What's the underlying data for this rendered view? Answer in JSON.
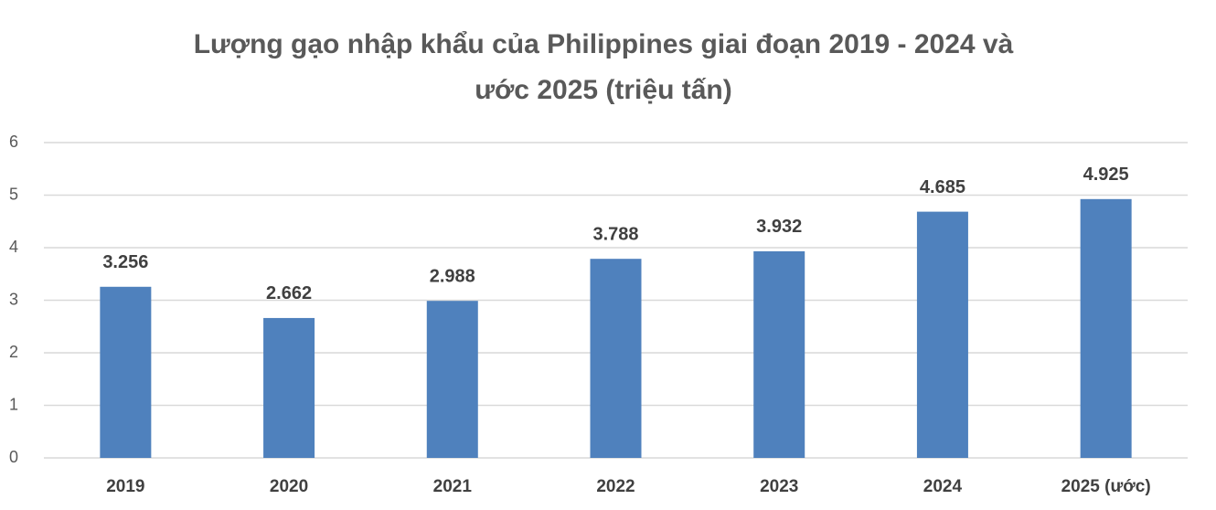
{
  "chart_data": {
    "type": "bar",
    "title": [
      "Lượng gạo nhập khẩu của Philippines giai đoạn 2019 - 2024 và",
      "ước 2025 (triệu tấn)"
    ],
    "categories": [
      "2019",
      "2020",
      "2021",
      "2022",
      "2023",
      "2024",
      "2025 (ước)"
    ],
    "values": [
      3.256,
      2.662,
      2.988,
      3.788,
      3.932,
      4.685,
      4.925
    ],
    "color": "#4f81bd",
    "ylim": [
      0,
      6
    ],
    "yticks": [
      0,
      1,
      2,
      3,
      4,
      5,
      6
    ],
    "grid": true
  }
}
